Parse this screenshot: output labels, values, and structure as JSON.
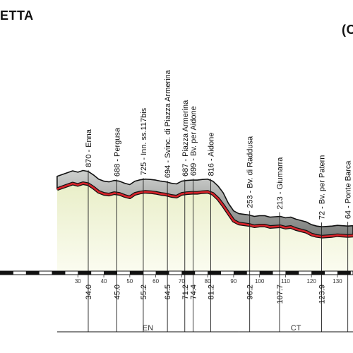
{
  "header": {
    "title_fragment": "ETTA",
    "right_fragment": "(O"
  },
  "chart_data": {
    "type": "area",
    "title": "",
    "xlabel": "",
    "ylabel": "",
    "xlim": [
      0,
      136
    ],
    "grid": false,
    "axis_ticks": [
      30,
      40,
      50,
      60,
      70,
      80,
      90,
      100,
      110,
      120,
      130
    ],
    "waypoints": [
      {
        "alt": "870",
        "name": "Enna",
        "km": "34.0",
        "x": 34.0
      },
      {
        "alt": "688",
        "name": "Pergusa",
        "km": "45.0",
        "x": 45.0
      },
      {
        "alt": "725",
        "name": "Inn. ss.117bis",
        "km": "55.2",
        "x": 55.2
      },
      {
        "alt": "694",
        "name": "Svinc. di Piazza Armerina",
        "km": "64.5",
        "x": 64.5
      },
      {
        "alt": "687",
        "name": "Piazza Armerina",
        "km": "71.2",
        "x": 71.2
      },
      {
        "alt": "699",
        "name": "Bv. per Aidone",
        "km": "74.4",
        "x": 74.4
      },
      {
        "alt": "816",
        "name": "Aidone",
        "km": "81.2",
        "x": 81.2
      },
      {
        "alt": "253",
        "name": "Bv. di Raddusa",
        "km": "96.2",
        "x": 96.2
      },
      {
        "alt": "213",
        "name": "Giumarra",
        "km": "107.7",
        "x": 107.7
      },
      {
        "alt": "72",
        "name": "Bv. per Patern",
        "km": "123.9",
        "x": 123.9
      },
      {
        "alt": "64",
        "name": "Ponte Barca",
        "km": "",
        "x": 134
      }
    ],
    "profile": {
      "x": [
        22,
        25,
        28,
        30,
        32,
        34,
        36,
        38,
        40,
        42,
        44,
        46,
        48,
        50,
        52,
        54,
        56,
        58,
        60,
        62,
        64,
        66,
        68,
        70,
        72,
        74,
        76,
        78,
        80,
        82,
        84,
        86,
        88,
        90,
        92,
        94,
        96,
        98,
        100,
        102,
        104,
        106,
        108,
        110,
        112,
        114,
        116,
        118,
        120,
        122,
        124,
        126,
        128,
        130,
        132,
        134,
        136
      ],
      "y": [
        760,
        800,
        840,
        820,
        845,
        830,
        780,
        720,
        690,
        680,
        700,
        690,
        660,
        640,
        690,
        710,
        720,
        715,
        705,
        690,
        680,
        660,
        650,
        690,
        700,
        705,
        705,
        715,
        720,
        690,
        620,
        520,
        410,
        300,
        260,
        250,
        240,
        220,
        230,
        230,
        210,
        215,
        220,
        200,
        210,
        180,
        160,
        140,
        100,
        80,
        70,
        75,
        80,
        90,
        85,
        80,
        85
      ]
    },
    "regions": [
      {
        "label": "EN",
        "from": 22,
        "to": 92
      },
      {
        "label": "CT",
        "from": 92,
        "to": 136
      }
    ]
  }
}
